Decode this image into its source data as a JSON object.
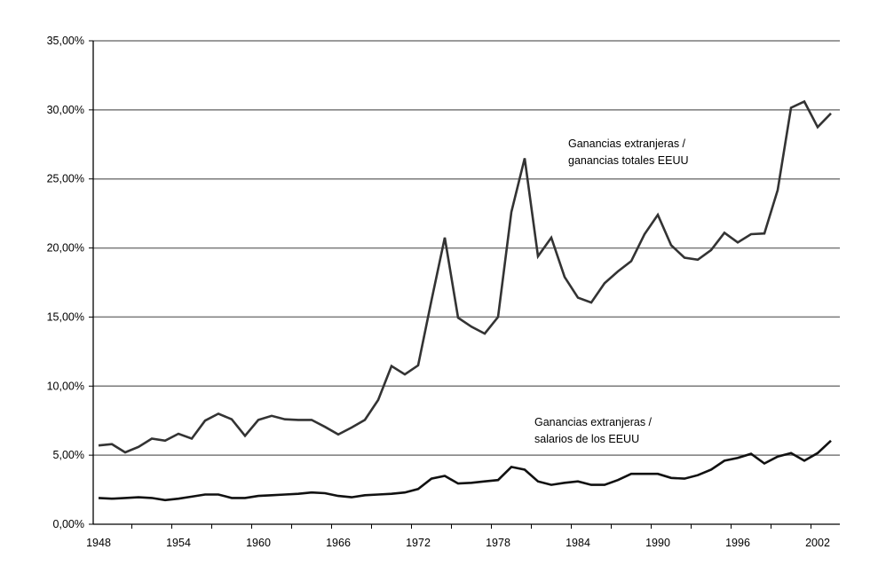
{
  "chart_data": {
    "type": "line",
    "title": "",
    "xlabel": "",
    "ylabel": "",
    "ylim": [
      0,
      35
    ],
    "xlim": [
      1948,
      2003
    ],
    "grid": true,
    "y_ticks": [
      "0,00%",
      "5,00%",
      "10,00%",
      "15,00%",
      "20,00%",
      "25,00%",
      "30,00%",
      "35,00%"
    ],
    "y_tick_values": [
      0,
      5,
      10,
      15,
      20,
      25,
      30,
      35
    ],
    "x_ticks": [
      "1948",
      "1954",
      "1960",
      "1966",
      "1972",
      "1978",
      "1984",
      "1990",
      "1996",
      "2002"
    ],
    "x_tick_values": [
      1948,
      1954,
      1960,
      1966,
      1972,
      1978,
      1984,
      1990,
      1996,
      2002
    ],
    "x": [
      1948,
      1949,
      1950,
      1951,
      1952,
      1953,
      1954,
      1955,
      1956,
      1957,
      1958,
      1959,
      1960,
      1961,
      1962,
      1963,
      1964,
      1965,
      1966,
      1967,
      1968,
      1969,
      1970,
      1971,
      1972,
      1973,
      1974,
      1975,
      1976,
      1977,
      1978,
      1979,
      1980,
      1981,
      1982,
      1983,
      1984,
      1985,
      1986,
      1987,
      1988,
      1989,
      1990,
      1991,
      1992,
      1993,
      1994,
      1995,
      1996,
      1997,
      1998,
      1999,
      2000,
      2001,
      2002,
      2003
    ],
    "series": [
      {
        "name": "Ganancias extranjeras / ganancias totales EEUU",
        "label_lines": [
          "Ganancias extranjeras /",
          "ganancias totales  EEUU"
        ],
        "color": "#333333",
        "values": [
          5.7,
          5.8,
          5.2,
          5.6,
          6.2,
          6.05,
          6.55,
          6.2,
          7.5,
          8.0,
          7.6,
          6.4,
          7.55,
          7.85,
          7.6,
          7.55,
          7.55,
          7.05,
          6.5,
          7.0,
          7.55,
          9.0,
          11.45,
          10.85,
          11.5,
          16.2,
          20.75,
          14.95,
          14.3,
          13.8,
          15.0,
          22.6,
          26.5,
          19.4,
          20.75,
          17.9,
          16.4,
          16.05,
          17.45,
          18.3,
          19.05,
          21.0,
          22.4,
          20.2,
          19.3,
          19.15,
          19.85,
          21.1,
          20.4,
          21.0,
          21.05,
          24.2,
          30.15,
          30.6,
          28.75,
          29.75
        ]
      },
      {
        "name": "Ganancias extranjeras / salarios de los EEUU",
        "label_lines": [
          "Ganancias extranjeras /",
          "salarios de los EEUU"
        ],
        "color": "#111111",
        "values": [
          1.9,
          1.85,
          1.9,
          1.95,
          1.9,
          1.75,
          1.85,
          2.0,
          2.15,
          2.15,
          1.9,
          1.9,
          2.05,
          2.1,
          2.15,
          2.2,
          2.3,
          2.25,
          2.05,
          1.95,
          2.1,
          2.15,
          2.2,
          2.3,
          2.55,
          3.3,
          3.5,
          2.95,
          3.0,
          3.1,
          3.2,
          4.15,
          3.95,
          3.1,
          2.85,
          3.0,
          3.1,
          2.85,
          2.85,
          3.2,
          3.65,
          3.65,
          3.65,
          3.35,
          3.3,
          3.55,
          3.95,
          4.6,
          4.8,
          5.1,
          4.4,
          4.9,
          5.15,
          4.6,
          5.15,
          6.05
        ]
      }
    ]
  }
}
